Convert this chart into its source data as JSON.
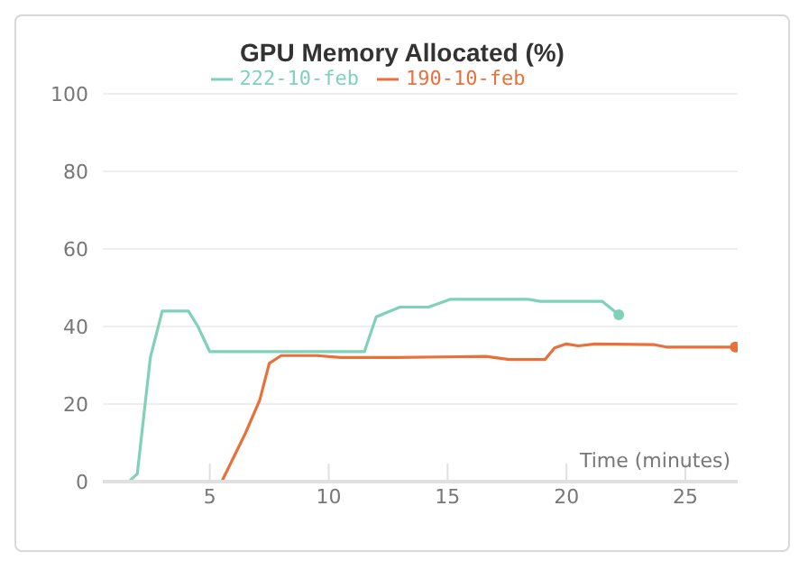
{
  "chart_data": {
    "type": "line",
    "title": "GPU Memory Allocated (%)",
    "xlabel": "Time (minutes)",
    "xlim": [
      0.5,
      27.2
    ],
    "xticks": [
      5,
      10,
      15,
      20,
      25
    ],
    "ylim": [
      0,
      100
    ],
    "yticks": [
      0,
      20,
      40,
      60,
      80,
      100
    ],
    "grid": "y",
    "legend": "top",
    "marker": "none",
    "line_style": "solid",
    "series": [
      {
        "name": "222-10-feb",
        "color": "#7fd1b9",
        "x": [
          0.5,
          1.6,
          1.95,
          2.5,
          3.0,
          4.1,
          4.5,
          5.0,
          11.5,
          12.0,
          13.0,
          14.2,
          15.1,
          18.4,
          18.9,
          21.5,
          22.2
        ],
        "values": [
          0,
          0,
          2,
          32,
          44,
          44,
          40,
          33.5,
          33.5,
          42.5,
          45,
          45,
          47,
          47,
          46.5,
          46.5,
          43
        ]
      },
      {
        "name": "190-10-feb",
        "color": "#e8703a",
        "x": [
          0.5,
          5.5,
          6.1,
          6.5,
          7.1,
          7.5,
          8.0,
          9.5,
          10.5,
          12.8,
          16.6,
          17.6,
          19.1,
          19.5,
          20.0,
          20.5,
          21.2,
          23.7,
          24.2,
          27.1
        ],
        "values": [
          0,
          0,
          7.5,
          12.5,
          21,
          30.5,
          32.5,
          32.5,
          32,
          32,
          32.3,
          31.5,
          31.5,
          34.5,
          35.5,
          35,
          35.5,
          35.3,
          34.7,
          34.7
        ]
      }
    ]
  }
}
